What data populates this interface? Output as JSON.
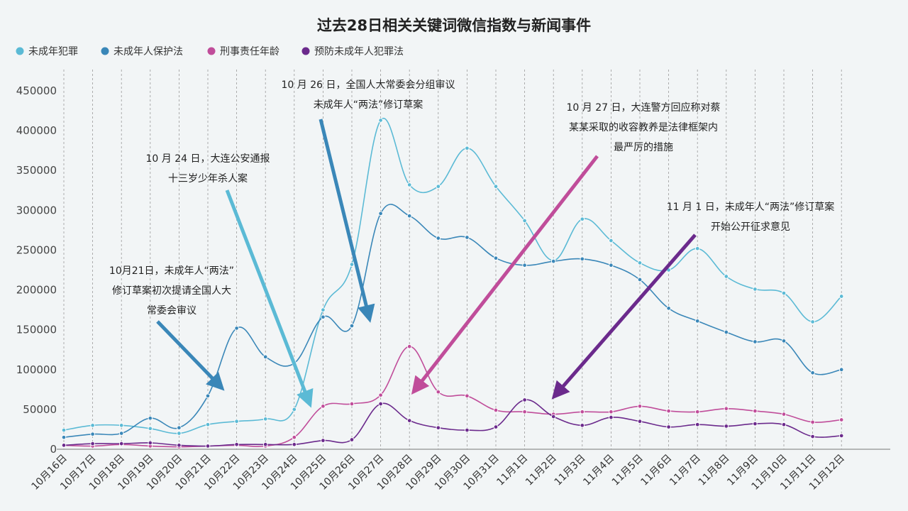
{
  "chart_data": {
    "type": "line",
    "title": "过去28日相关关键词微信指数与新闻事件",
    "categories": [
      "10月16日",
      "10月17日",
      "10月18日",
      "10月19日",
      "10月20日",
      "10月21日",
      "10月22日",
      "10月23日",
      "10月24日",
      "10月25日",
      "10月26日",
      "10月27日",
      "10月28日",
      "10月29日",
      "10月30日",
      "10月31日",
      "11月1日",
      "11月2日",
      "11月3日",
      "11月4日",
      "11月5日",
      "11月6日",
      "11月7日",
      "11月8日",
      "11月9日",
      "11月10日",
      "11月11日",
      "11月12日"
    ],
    "y_ticks": [
      "0",
      "50000",
      "100000",
      "150000",
      "200000",
      "250000",
      "300000",
      "350000",
      "400000",
      "450000"
    ],
    "ylim": [
      0,
      450000
    ],
    "grid": "vertical dashed",
    "legend_position": "top-left",
    "series": [
      {
        "name": "未成年犯罪",
        "color": "#5bbad5",
        "values": [
          24000,
          30000,
          30000,
          26000,
          20000,
          31000,
          35000,
          38000,
          50000,
          175000,
          232000,
          413000,
          332000,
          330000,
          378000,
          330000,
          287000,
          237000,
          289000,
          262000,
          234000,
          225000,
          252000,
          217000,
          201000,
          196000,
          160000,
          192000
        ]
      },
      {
        "name": "未成年人保护法",
        "color": "#3a87b8",
        "values": [
          15000,
          19000,
          20000,
          39000,
          27000,
          67000,
          152000,
          116000,
          108000,
          166000,
          155000,
          296000,
          293000,
          265000,
          266000,
          240000,
          231000,
          236000,
          239000,
          231000,
          213000,
          177000,
          161000,
          147000,
          135000,
          136000,
          96000,
          100000
        ]
      },
      {
        "name": "刑事责任年龄",
        "color": "#c04d9a",
        "values": [
          5000,
          4000,
          6000,
          4000,
          3000,
          4000,
          5000,
          4000,
          15000,
          54000,
          57000,
          68000,
          129000,
          72000,
          67000,
          49000,
          47000,
          44000,
          47000,
          47000,
          54000,
          48000,
          47000,
          51000,
          48000,
          44000,
          34000,
          37000
        ]
      },
      {
        "name": "预防未成年人犯罪法",
        "color": "#6b2a8c",
        "values": [
          5000,
          7000,
          7000,
          8000,
          5000,
          4000,
          6000,
          6000,
          6000,
          11000,
          12000,
          57000,
          36000,
          27000,
          24000,
          28000,
          62000,
          41000,
          30000,
          40000,
          35000,
          28000,
          31000,
          29000,
          32000,
          31000,
          16000,
          17000
        ]
      }
    ],
    "annotations": [
      {
        "lines": [
          "10月21日，未成年人“两法”",
          "修订草案初次提请全国人大",
          "常委会审议"
        ],
        "color": "#3a87b8",
        "target": "10月21日"
      },
      {
        "lines": [
          "10 月 24 日，大连公安通报",
          "十三岁少年杀人案"
        ],
        "color": "#5bbad5",
        "target": "10月24日"
      },
      {
        "lines": [
          "10 月 26 日，全国人大常委会分组审议",
          "未成年人“两法”修订草案"
        ],
        "color": "#3a87b8",
        "target": "10月26日"
      },
      {
        "lines": [
          "10 月 27 日，大连警方回应称对蔡",
          "某某采取的收容教养是法律框架内",
          "最严厉的措施"
        ],
        "color": "#c04d9a",
        "target": "10月27日"
      },
      {
        "lines": [
          "11 月 1 日，未成年人“两法”修订草案",
          "开始公开征求意见"
        ],
        "color": "#6b2a8c",
        "target": "11月1日"
      }
    ]
  }
}
